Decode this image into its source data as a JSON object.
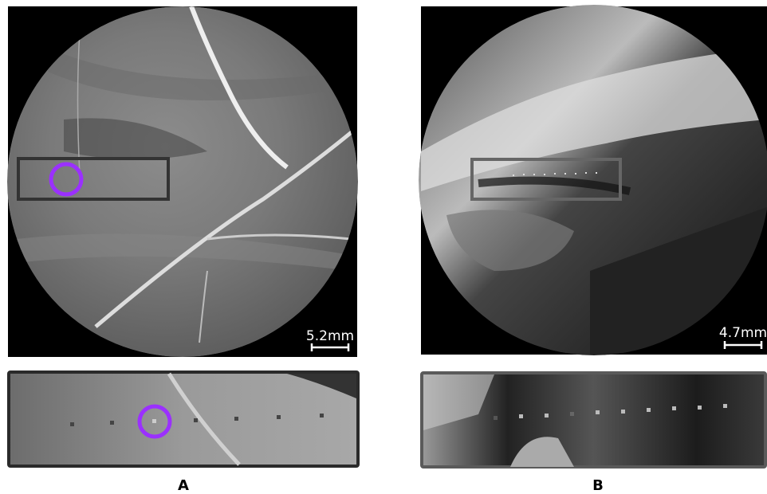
{
  "panels": [
    {
      "label": "A",
      "scale_bar": "5.2mm"
    },
    {
      "label": "B",
      "scale_bar": "4.7mm"
    }
  ]
}
